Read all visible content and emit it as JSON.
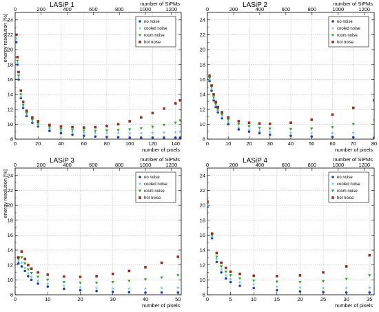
{
  "chart_data": [
    {
      "type": "scatter",
      "title": "LASiP 1",
      "xlabel": "number of pixels",
      "x2label": "number of SiPMs",
      "ylabel": "energy resolution [%]",
      "xlim": [
        0,
        145
      ],
      "x2lim": [
        0,
        1275
      ],
      "ylim": [
        8,
        25
      ],
      "xticks": [
        "0",
        "20",
        "40",
        "60",
        "80",
        "100",
        "120",
        "140"
      ],
      "x2ticks": [
        "0",
        "200",
        "400",
        "600",
        "800",
        "1000",
        "1200"
      ],
      "yticks": [
        "8",
        "10",
        "12",
        "14",
        "16",
        "18",
        "20",
        "22",
        "24"
      ],
      "grid": true,
      "legend": "top-right",
      "series": [
        {
          "name": "no noise",
          "color": "#1f3fbf",
          "marker": "circle",
          "x": [
            1,
            2,
            3,
            5,
            7,
            10,
            15,
            20,
            30,
            40,
            50,
            60,
            70,
            80,
            90,
            100,
            110,
            120,
            130,
            140,
            144
          ],
          "y": [
            21,
            18,
            16,
            13.5,
            12.2,
            11.1,
            10.2,
            9.7,
            9.1,
            8.8,
            8.6,
            8.45,
            8.35,
            8.3,
            8.25,
            8.2,
            8.2,
            8.2,
            8.2,
            8.2,
            8.2
          ]
        },
        {
          "name": "cooled noise",
          "color": "#5ec8e8",
          "marker": "star",
          "x": [
            1,
            2,
            3,
            5,
            7,
            10,
            15,
            20,
            30,
            40,
            50,
            60,
            70,
            80,
            90,
            100,
            110,
            120,
            130,
            140,
            144
          ],
          "y": [
            21.5,
            18.2,
            16.2,
            13.7,
            12.4,
            11.3,
            10.4,
            9.9,
            9.4,
            9.1,
            8.95,
            8.85,
            8.8,
            8.8,
            8.8,
            8.8,
            8.8,
            8.85,
            8.9,
            8.95,
            9.0
          ]
        },
        {
          "name": "room noise",
          "color": "#2ea81e",
          "marker": "triangle",
          "x": [
            1,
            2,
            3,
            5,
            7,
            10,
            15,
            20,
            30,
            40,
            50,
            60,
            70,
            80,
            90,
            100,
            110,
            120,
            130,
            140,
            144
          ],
          "y": [
            22,
            18.5,
            16.5,
            14,
            12.6,
            11.5,
            10.6,
            10.1,
            9.6,
            9.35,
            9.2,
            9.15,
            9.1,
            9.15,
            9.2,
            9.3,
            9.45,
            9.65,
            9.9,
            10.2,
            10.5
          ]
        },
        {
          "name": "hot noise",
          "color": "#9b2a1a",
          "marker": "square",
          "x": [
            1,
            2,
            3,
            5,
            7,
            10,
            15,
            20,
            30,
            40,
            50,
            60,
            70,
            80,
            90,
            100,
            110,
            120,
            130,
            140,
            144
          ],
          "y": [
            22,
            19,
            17,
            14.5,
            13,
            11.8,
            10.9,
            10.4,
            9.9,
            9.7,
            9.6,
            9.55,
            9.6,
            9.75,
            10,
            10.4,
            10.9,
            11.5,
            12.1,
            12.8,
            13.2
          ]
        }
      ]
    },
    {
      "type": "scatter",
      "title": "LASiP 2",
      "xlabel": "number of pixels",
      "x2label": "number of SiPMs",
      "ylabel": "",
      "xlim": [
        0,
        80
      ],
      "x2lim": [
        0,
        1275
      ],
      "ylim": [
        8,
        25
      ],
      "xticks": [
        "0",
        "10",
        "20",
        "30",
        "40",
        "50",
        "60",
        "70",
        "80"
      ],
      "x2ticks": [
        "0",
        "200",
        "400",
        "600",
        "800",
        "1000",
        "1200"
      ],
      "yticks": [
        "8",
        "10",
        "12",
        "14",
        "16",
        "18",
        "20",
        "22",
        "24"
      ],
      "grid": true,
      "legend": "top-right",
      "series": [
        {
          "name": "no noise",
          "color": "#1f3fbf",
          "marker": "circle",
          "x": [
            1,
            2,
            3,
            4,
            5,
            7,
            10,
            15,
            20,
            25,
            30,
            40,
            50,
            60,
            70,
            80
          ],
          "y": [
            15.8,
            14.5,
            13.2,
            12.3,
            11.6,
            10.8,
            10,
            9.3,
            9,
            8.8,
            8.6,
            8.45,
            8.35,
            8.3,
            8.25,
            8.2
          ]
        },
        {
          "name": "cooled noise",
          "color": "#5ec8e8",
          "marker": "star",
          "x": [
            1,
            2,
            3,
            4,
            5,
            7,
            10,
            15,
            20,
            25,
            30,
            40,
            50,
            60,
            70,
            80
          ],
          "y": [
            16,
            14.7,
            13.4,
            12.5,
            11.8,
            11,
            10.3,
            9.6,
            9.3,
            9.1,
            9,
            8.85,
            8.8,
            8.8,
            8.85,
            8.9
          ]
        },
        {
          "name": "room noise",
          "color": "#2ea81e",
          "marker": "triangle",
          "x": [
            1,
            2,
            3,
            4,
            5,
            7,
            10,
            15,
            20,
            25,
            30,
            40,
            50,
            60,
            70,
            80
          ],
          "y": [
            16.2,
            15,
            13.6,
            12.7,
            12,
            11.3,
            10.6,
            10,
            9.7,
            9.5,
            9.4,
            9.35,
            9.4,
            9.6,
            10,
            10.5
          ]
        },
        {
          "name": "hot noise",
          "color": "#9b2a1a",
          "marker": "square",
          "x": [
            1,
            2,
            3,
            4,
            5,
            7,
            10,
            15,
            20,
            25,
            30,
            40,
            50,
            60,
            70,
            80
          ],
          "y": [
            16.5,
            15.2,
            14,
            13,
            12.3,
            11.6,
            10.9,
            10.4,
            10.2,
            10.1,
            10.05,
            10.2,
            10.6,
            11.3,
            12.2,
            13.2
          ]
        }
      ]
    },
    {
      "type": "scatter",
      "title": "LASiP 3",
      "xlabel": "number of pixels",
      "x2label": "number of SiPMs",
      "ylabel": "energy resolution [%]",
      "xlim": [
        0,
        51
      ],
      "x2lim": [
        0,
        1275
      ],
      "ylim": [
        8,
        25
      ],
      "xticks": [
        "0",
        "10",
        "20",
        "30",
        "40",
        "50"
      ],
      "x2ticks": [
        "0",
        "200",
        "400",
        "600",
        "800",
        "1000",
        "1200"
      ],
      "yticks": [
        "8",
        "10",
        "12",
        "14",
        "16",
        "18",
        "20",
        "22",
        "24"
      ],
      "grid": true,
      "legend": "top-right",
      "series": [
        {
          "name": "no noise",
          "color": "#1f3fbf",
          "marker": "circle",
          "x": [
            1,
            2,
            3,
            4,
            5,
            7,
            10,
            15,
            20,
            25,
            30,
            35,
            40,
            45,
            50
          ],
          "y": [
            12.2,
            11.8,
            11.2,
            10.5,
            10,
            9.5,
            9.1,
            8.8,
            8.6,
            8.5,
            8.4,
            8.35,
            8.3,
            8.3,
            8.3
          ]
        },
        {
          "name": "cooled noise",
          "color": "#5ec8e8",
          "marker": "star",
          "x": [
            1,
            2,
            3,
            4,
            5,
            7,
            10,
            15,
            20,
            25,
            30,
            35,
            40,
            45,
            50
          ],
          "y": [
            12.5,
            12.3,
            11.6,
            10.9,
            10.4,
            9.9,
            9.5,
            9.2,
            9,
            8.9,
            8.85,
            8.85,
            8.85,
            8.9,
            8.95
          ]
        },
        {
          "name": "room noise",
          "color": "#2ea81e",
          "marker": "triangle",
          "x": [
            1,
            2,
            3,
            4,
            5,
            7,
            10,
            15,
            20,
            25,
            30,
            35,
            40,
            45,
            50
          ],
          "y": [
            12.8,
            13,
            12.2,
            11.4,
            10.9,
            10.4,
            10,
            9.7,
            9.6,
            9.6,
            9.7,
            9.85,
            10.05,
            10.3,
            10.6
          ]
        },
        {
          "name": "hot noise",
          "color": "#9b2a1a",
          "marker": "square",
          "x": [
            1,
            2,
            3,
            4,
            5,
            7,
            10,
            15,
            20,
            25,
            30,
            35,
            40,
            45,
            50
          ],
          "y": [
            13,
            13.8,
            12.8,
            12,
            11.5,
            11,
            10.7,
            10.45,
            10.4,
            10.5,
            10.8,
            11.2,
            11.7,
            12.3,
            13.1
          ]
        }
      ]
    },
    {
      "type": "scatter",
      "title": "LASiP 4",
      "xlabel": "number of pixels",
      "x2label": "number of SiPMs",
      "ylabel": "",
      "xlim": [
        0,
        36
      ],
      "x2lim": [
        0,
        1275
      ],
      "ylim": [
        8,
        25
      ],
      "xticks": [
        "0",
        "5",
        "10",
        "15",
        "20",
        "25",
        "30",
        "35"
      ],
      "x2ticks": [
        "0",
        "200",
        "400",
        "600",
        "800",
        "1000",
        "1200"
      ],
      "yticks": [
        "8",
        "10",
        "12",
        "14",
        "16",
        "18",
        "20",
        "22",
        "24"
      ],
      "grid": true,
      "legend": "top-right",
      "series": [
        {
          "name": "no noise",
          "color": "#1f3fbf",
          "marker": "circle",
          "x": [
            0,
            1,
            2,
            3,
            4,
            5,
            7,
            10,
            15,
            20,
            25,
            30,
            35
          ],
          "y": [
            19.8,
            15.6,
            12.4,
            11,
            10.2,
            9.7,
            9.2,
            8.9,
            8.6,
            8.45,
            8.35,
            8.3,
            8.3
          ]
        },
        {
          "name": "cooled noise",
          "color": "#5ec8e8",
          "marker": "star",
          "x": [
            0,
            1,
            2,
            3,
            4,
            5,
            7,
            10,
            15,
            20,
            25,
            30,
            35
          ],
          "y": [
            20,
            15.8,
            12.8,
            11.4,
            10.6,
            10.1,
            9.7,
            9.4,
            9.1,
            9,
            8.9,
            8.9,
            8.95
          ]
        },
        {
          "name": "room noise",
          "color": "#2ea81e",
          "marker": "triangle",
          "x": [
            0,
            1,
            2,
            3,
            4,
            5,
            7,
            10,
            15,
            20,
            25,
            30,
            35
          ],
          "y": [
            20.2,
            16,
            13.1,
            11.8,
            11.1,
            10.6,
            10.2,
            9.9,
            9.75,
            9.7,
            9.8,
            10.1,
            10.6
          ]
        },
        {
          "name": "hot noise",
          "color": "#9b2a1a",
          "marker": "square",
          "x": [
            0,
            1,
            2,
            3,
            4,
            5,
            7,
            10,
            15,
            20,
            25,
            30,
            35
          ],
          "y": [
            20.5,
            16.2,
            13.6,
            12.3,
            11.6,
            11.1,
            10.8,
            10.55,
            10.5,
            10.6,
            11,
            11.8,
            13.3
          ]
        }
      ]
    }
  ]
}
